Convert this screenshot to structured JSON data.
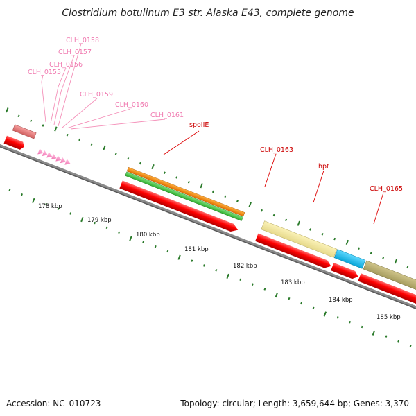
{
  "title": "Clostridium botulinum E3 str. Alaska E43, complete genome",
  "footer": {
    "accession": "Accession: NC_010723",
    "topology": "Topology: circular; Length: 3,659,644 bp; Genes: 3,370"
  },
  "colors": {
    "backbone": "#888888",
    "cds": "#ff0000",
    "tick": "#2a7a2a",
    "label_pink": "#f07ab0",
    "label_red": "#cc0000",
    "leader_pink": "#f48fb8",
    "leader_red": "#dd0000"
  },
  "scale": {
    "unit": "kbp",
    "labels": [
      "178 kbp",
      "179 kbp",
      "180 kbp",
      "181 kbp",
      "182 kbp",
      "183 kbp",
      "184 kbp",
      "185 kbp"
    ]
  },
  "genes": [
    {
      "name": "CLH_0155",
      "color": "pink"
    },
    {
      "name": "CLH_0156",
      "color": "pink"
    },
    {
      "name": "CLH_0157",
      "color": "pink"
    },
    {
      "name": "CLH_0158",
      "color": "pink"
    },
    {
      "name": "CLH_0159",
      "color": "pink"
    },
    {
      "name": "CLH_0160",
      "color": "pink"
    },
    {
      "name": "CLH_0161",
      "color": "pink"
    },
    {
      "name": "spoIIE",
      "color": "red"
    },
    {
      "name": "CLH_0163",
      "color": "red"
    },
    {
      "name": "hpt",
      "color": "red"
    },
    {
      "name": "CLH_0165",
      "color": "red"
    }
  ]
}
